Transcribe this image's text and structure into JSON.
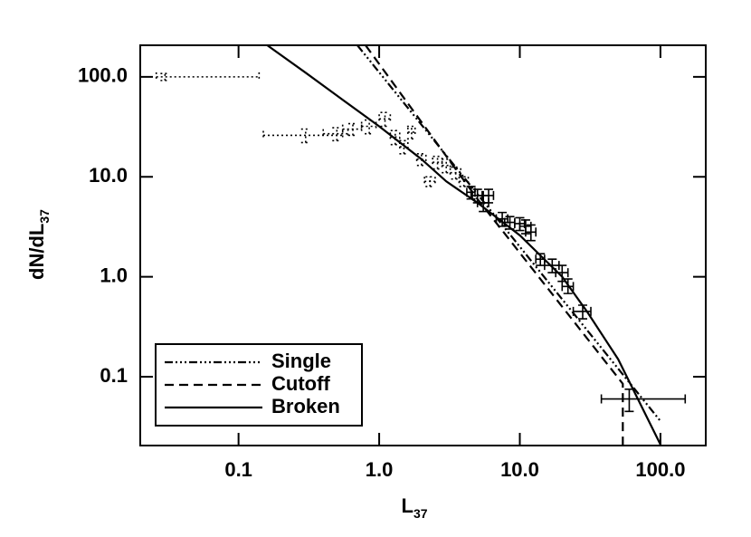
{
  "chart_data": {
    "type": "loglog-errorbar",
    "xscale": "log",
    "yscale": "log",
    "xlabel": {
      "text": "L",
      "subscript": "37"
    },
    "ylabel": {
      "text": "dN/dL",
      "subscript": "37"
    },
    "xlim": [
      0.02,
      210
    ],
    "ylim": [
      0.0205,
      207
    ],
    "xticks": [
      0.1,
      {
        "value": 1,
        "label": "1.0"
      },
      {
        "value": 10,
        "label": "10.0"
      },
      {
        "value": 100,
        "label": "100.0"
      }
    ],
    "yticks": [
      0.1,
      {
        "value": 1,
        "label": "1.0"
      },
      {
        "value": 10,
        "label": "10.0"
      },
      {
        "value": 100,
        "label": "100.0"
      }
    ],
    "legend": "lower left",
    "points": [
      {
        "style": "dotted",
        "color": "#000000",
        "x": [
          0.03,
          0.3,
          0.5,
          0.65,
          0.85,
          1.1,
          1.3,
          1.5,
          1.7,
          2.0,
          2.3,
          2.6,
          3.0,
          3.5,
          4.0
        ],
        "y": [
          100,
          26,
          27,
          30,
          32,
          38,
          25,
          20,
          28,
          15,
          9,
          14,
          13,
          11,
          9
        ],
        "x_lo": [
          0.026,
          0.15,
          0.4,
          0.55,
          0.75,
          1.0,
          1.2,
          1.4,
          1.6,
          1.85,
          2.1,
          2.4,
          2.8,
          3.2,
          3.7
        ],
        "x_hi": [
          0.14,
          0.55,
          0.6,
          0.75,
          0.95,
          1.2,
          1.4,
          1.6,
          1.8,
          2.15,
          2.5,
          2.8,
          3.2,
          3.8,
          4.3
        ],
        "y_lo": [
          92,
          22,
          23,
          26,
          27,
          32,
          21,
          17,
          24,
          13,
          8,
          12,
          11,
          9.5,
          8
        ],
        "y_hi": [
          108,
          30,
          31,
          34,
          37,
          44,
          29,
          23,
          32,
          17,
          10,
          16,
          15,
          12.5,
          10
        ]
      },
      {
        "style": "solid",
        "color": "#000000",
        "x": [
          4.5,
          5,
          5.5,
          6,
          7.5,
          8.5,
          10,
          11,
          12,
          14,
          17,
          20,
          22,
          28,
          60
        ],
        "y": [
          7,
          6.5,
          5.5,
          6.5,
          3.8,
          3.5,
          3.4,
          3.2,
          2.8,
          1.5,
          1.3,
          1.1,
          0.8,
          0.45,
          0.06
        ],
        "x_lo": [
          4.2,
          4.6,
          5.0,
          5.5,
          6.8,
          7.8,
          9.2,
          10,
          11,
          13,
          15,
          18,
          20,
          24,
          38
        ],
        "x_hi": [
          4.8,
          5.4,
          6.0,
          6.5,
          8.2,
          9.2,
          10.8,
          12,
          13,
          15,
          19,
          22,
          24,
          32,
          150
        ],
        "y_lo": [
          6,
          5.5,
          4.5,
          5.5,
          3.2,
          3.0,
          2.9,
          2.7,
          2.3,
          1.3,
          1.1,
          0.9,
          0.68,
          0.38,
          0.045
        ],
        "y_hi": [
          8,
          7.5,
          6.5,
          7.5,
          4.4,
          4.0,
          3.9,
          3.7,
          3.3,
          1.7,
          1.5,
          1.3,
          0.95,
          0.52,
          0.075
        ]
      }
    ],
    "series": [
      {
        "name": "Single",
        "color": "#000000",
        "dash": "dash-dot-dot-dot",
        "x": [
          0.7,
          5,
          100
        ],
        "y": [
          207,
          6.7,
          0.036
        ]
      },
      {
        "name": "Cutoff",
        "color": "#000000",
        "dash": "dashed",
        "x": [
          0.8,
          5,
          54,
          54
        ],
        "y": [
          207,
          6,
          0.085,
          0.0205
        ]
      },
      {
        "name": "Broken",
        "color": "#000000",
        "dash": "solid",
        "x": [
          0.16,
          0.3,
          0.5,
          1,
          2,
          3,
          5,
          10,
          20,
          30,
          50,
          100
        ],
        "y": [
          207,
          110,
          65,
          32,
          15,
          9,
          5.5,
          2.6,
          1,
          0.45,
          0.15,
          0.021
        ]
      }
    ]
  }
}
